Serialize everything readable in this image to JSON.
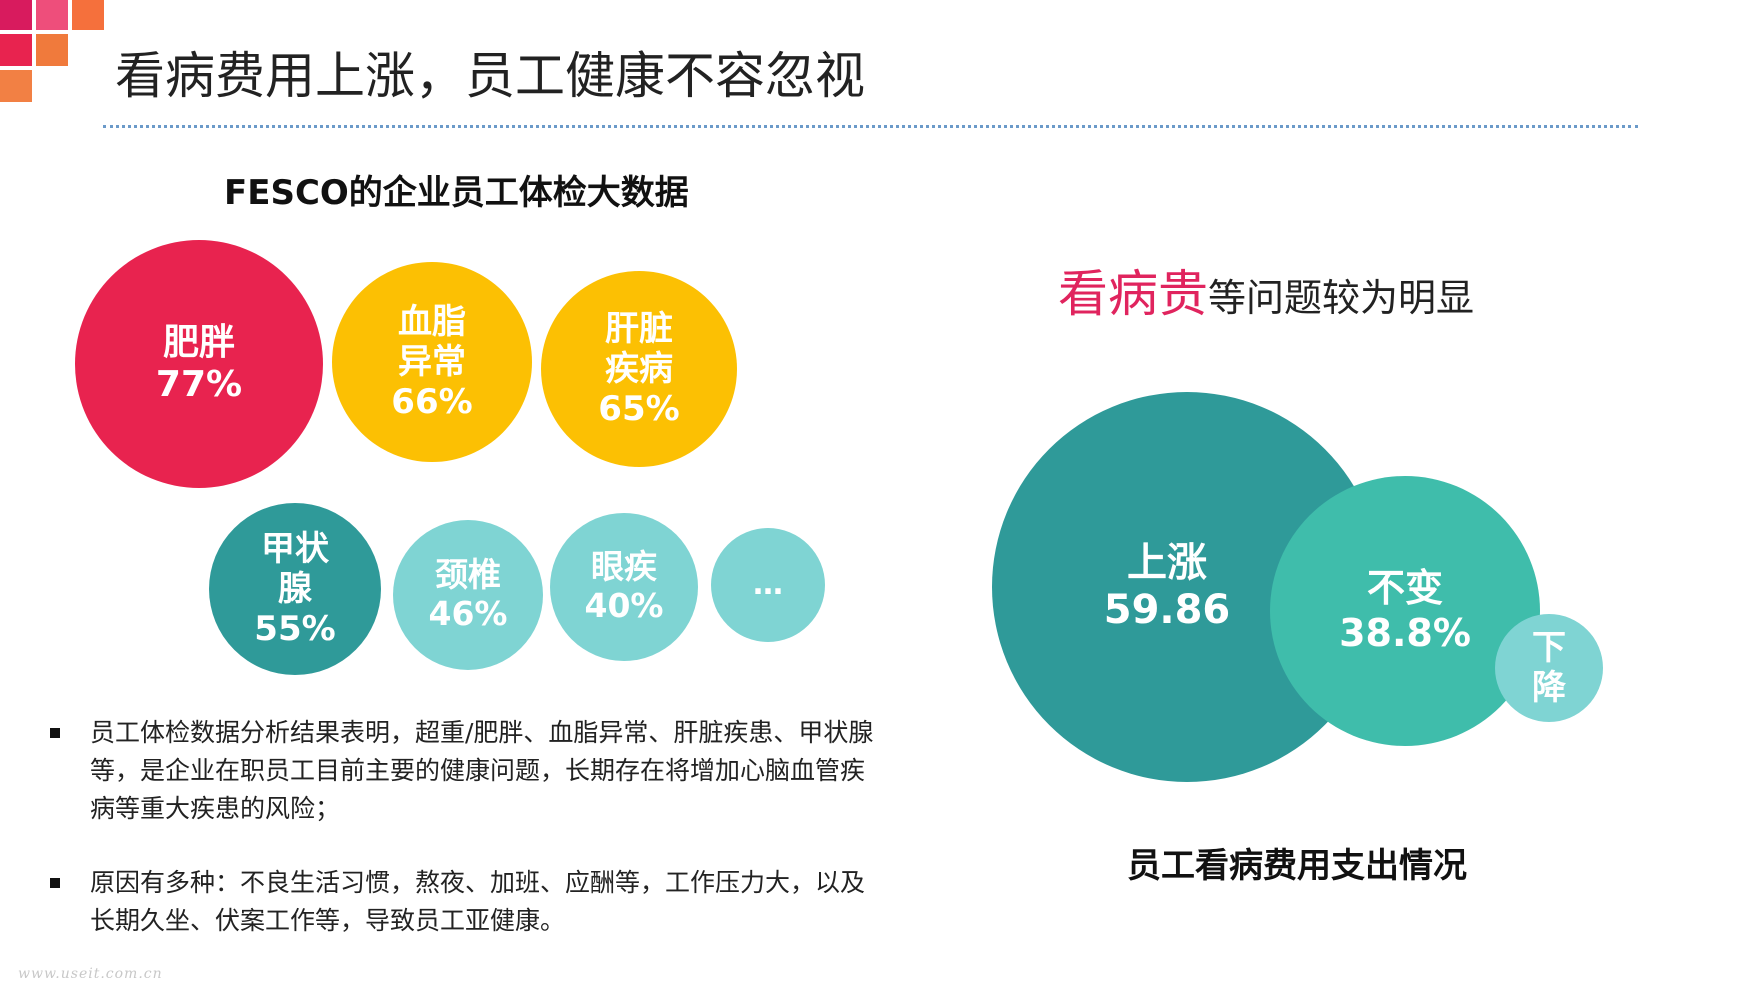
{
  "slide": {
    "title": "看病费用上涨，员工健康不容忽视",
    "watermark": "www.useit.com.cn"
  },
  "left": {
    "section_title": "FESCO的企业员工体检大数据",
    "bubbles": [
      {
        "lines": [
          "肥胖",
          "77%"
        ],
        "color": "#e8234f"
      },
      {
        "lines": [
          "血脂",
          "异常",
          "66%"
        ],
        "color": "#fcc003"
      },
      {
        "lines": [
          "肝脏",
          "疾病",
          "65%"
        ],
        "color": "#fcc003"
      },
      {
        "lines": [
          "甲状",
          "腺",
          "55%"
        ],
        "color": "#2f9a99"
      },
      {
        "lines": [
          "颈椎",
          "46%"
        ],
        "color": "#7fd4d3"
      },
      {
        "lines": [
          "眼疾",
          "40%"
        ],
        "color": "#7fd4d3"
      },
      {
        "lines": [
          "…"
        ],
        "color": "#7fd4d3"
      }
    ],
    "bullets": [
      "员工体检数据分析结果表明，超重/肥胖、血脂异常、肝脏疾患、甲状腺等，是企业在职员工目前主要的健康问题，长期存在将增加心脑血管疾病等重大疾患的风险；",
      "原因有多种：不良生活习惯，熬夜、加班、应酬等，工作压力大，以及长期久坐、伏案工作等，导致员工亚健康。"
    ]
  },
  "right": {
    "headline_accent": "看病贵",
    "headline_rest": "等问题较为明显",
    "chart_title": "员工看病费用支出情况",
    "bubbles": [
      {
        "lines": [
          "上涨",
          "59.86"
        ],
        "color": "#2f9a99"
      },
      {
        "lines": [
          "不变",
          "38.8%"
        ],
        "color": "#3fbdab"
      },
      {
        "lines": [
          "下",
          "降"
        ],
        "color": "#7fd4d3"
      }
    ]
  },
  "colors": {
    "accent_red": "#e0245e",
    "divider": "#6b9ac9"
  }
}
